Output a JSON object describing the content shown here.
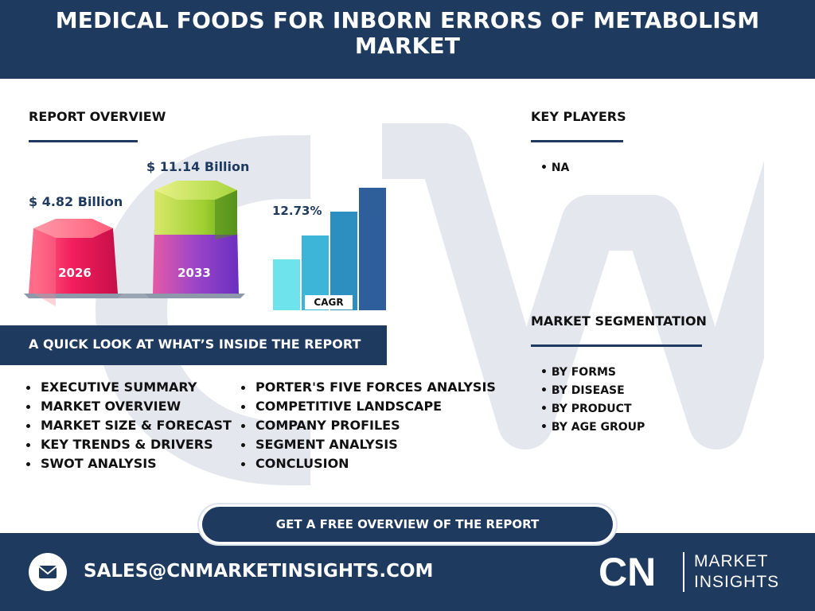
{
  "header": {
    "title": "MEDICAL FOODS FOR INBORN ERRORS OF METABOLISM MARKET"
  },
  "report_overview": {
    "title": "REPORT OVERVIEW",
    "value_2026": "$ 4.82 Billion",
    "value_2033": "$ 11.14 Billion",
    "year_start": "2026",
    "year_end": "2033",
    "cagr_value": "12.73%",
    "cagr_label": "CAGR"
  },
  "key_players": {
    "title": "KEY PLAYERS",
    "items": [
      "• NA"
    ]
  },
  "market_segmentation": {
    "title": "MARKET SEGMENTATION",
    "items": [
      "• BY FORMS",
      "• BY DISEASE",
      "• BY PRODUCT",
      "• BY AGE GROUP"
    ]
  },
  "quick_look": {
    "title": "A QUICK LOOK AT WHAT’S INSIDE THE REPORT",
    "left": [
      "EXECUTIVE SUMMARY",
      "MARKET OVERVIEW",
      "MARKET SIZE & FORECAST",
      "KEY TRENDS & DRIVERS",
      "SWOT ANALYSIS"
    ],
    "right": [
      "PORTER'S FIVE FORCES ANALYSIS",
      "COMPETITIVE LANDSCAPE",
      "COMPANY PROFILES",
      "SEGMENT ANALYSIS",
      "CONCLUSION"
    ]
  },
  "cta": {
    "label": "GET A FREE OVERVIEW OF THE REPORT"
  },
  "footer": {
    "email": "SALES@CNMARKETINSIGHTS.COM",
    "logo_mark": "CN",
    "logo_line1": "MARKET",
    "logo_line2": "INSIGHTS"
  },
  "colors": {
    "navy": "#1e3a5f",
    "pink": "#e8195a",
    "purple": "#8e44c9",
    "lime": "#9ccc2a",
    "cyan_light": "#6ee3ee",
    "blue_dark": "#2f5f9a"
  },
  "icons": {
    "mail": "envelope-icon"
  }
}
